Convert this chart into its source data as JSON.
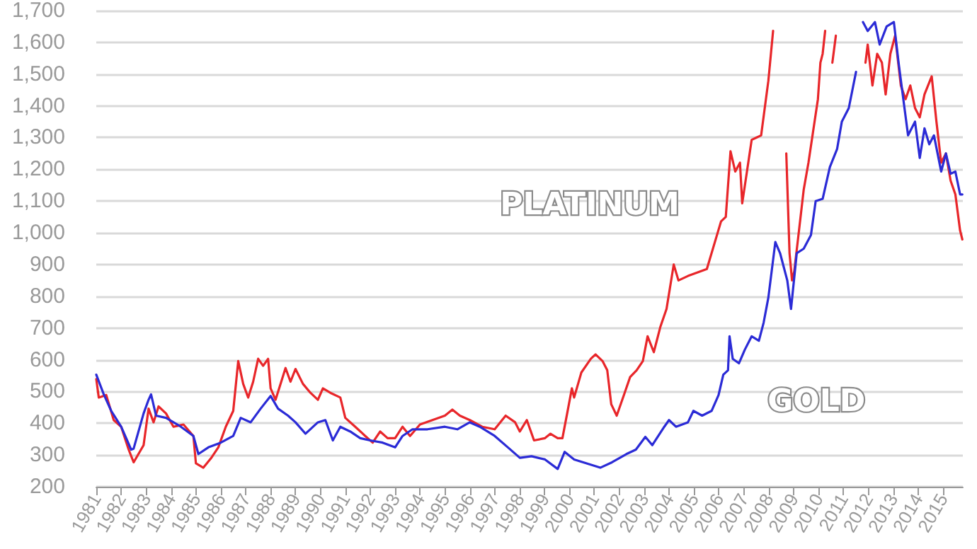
{
  "chart_data": {
    "type": "line",
    "xlim": [
      1981,
      2015.8
    ],
    "ylim": [
      200,
      1700
    ],
    "xticks": [
      1981,
      1982,
      1983,
      1984,
      1985,
      1986,
      1987,
      1988,
      1989,
      1990,
      1991,
      1992,
      1993,
      1994,
      1995,
      1996,
      1997,
      1998,
      1999,
      2000,
      2001,
      2002,
      2003,
      2004,
      2005,
      2006,
      2007,
      2008,
      2009,
      2010,
      2011,
      2012,
      2013,
      2014,
      2015
    ],
    "yticks": [
      200,
      300,
      400,
      500,
      600,
      700,
      800,
      900,
      {
        "value": 1000,
        "label": "1,000"
      },
      {
        "value": 1100,
        "label": "1,100"
      },
      {
        "value": 1200,
        "label": "1,200"
      },
      {
        "value": 1300,
        "label": "1,300"
      },
      {
        "value": 1400,
        "label": "1,400"
      },
      {
        "value": 1500,
        "label": "1,500"
      },
      {
        "value": 1600,
        "label": "1,600"
      },
      {
        "value": 1700,
        "label": "1,700"
      }
    ],
    "grid": "y",
    "legend": false,
    "marker": "none",
    "line_style": "solid",
    "series": [
      {
        "name": "PLATINUM",
        "color": "#e8262a",
        "x": [
          1981.0,
          1981.1,
          1981.4,
          1981.7,
          1982.0,
          1982.3,
          1982.5,
          1982.9,
          1983.1,
          1983.3,
          1983.5,
          1983.8,
          1984.1,
          1984.5,
          1984.9,
          1985.0,
          1985.3,
          1985.6,
          1985.9,
          1986.2,
          1986.5,
          1986.7,
          1986.9,
          1987.1,
          1987.3,
          1987.5,
          1987.7,
          1987.9,
          1988.0,
          1988.2,
          1988.6,
          1988.8,
          1989.0,
          1989.3,
          1989.6,
          1989.9,
          1990.1,
          1990.4,
          1990.8,
          1991.0,
          1991.4,
          1991.8,
          1992.1,
          1992.4,
          1992.7,
          1993.0,
          1993.3,
          1993.6,
          1994.0,
          1994.5,
          1995.0,
          1995.3,
          1995.6,
          1996.0,
          1996.5,
          1997.0,
          1997.44,
          1997.82,
          1998.01,
          1998.29,
          1998.58,
          1999.02,
          1999.24,
          1999.53,
          1999.72,
          1999.91,
          2000.1,
          2000.19,
          2000.48,
          2000.86,
          2001.05,
          2001.33,
          2001.52,
          2001.68,
          2001.9,
          2002.19,
          2002.44,
          2002.7,
          2002.95,
          2003.14,
          2003.39,
          2003.65,
          2003.9,
          2004.19,
          2004.38,
          2004.76,
          2005.52,
          2006.09,
          2006.28,
          2006.47,
          2006.66,
          2006.85,
          2006.94,
          2007.13,
          2007.32,
          2007.51,
          2007.7,
          2007.99,
          2008.18,
          2008.4,
          2008.71,
          2008.84,
          2008.94,
          2009.03,
          2009.22,
          2009.41,
          2009.6,
          2009.79,
          2009.98,
          2010.08,
          2010.17,
          2010.27,
          2010.37,
          2010.56,
          2010.7,
          2010.84,
          2011.89,
          2011.98,
          2012.17,
          2012.36,
          2012.55,
          2012.7,
          2012.89,
          2013.08,
          2013.31,
          2013.5,
          2013.69,
          2013.88,
          2014.07,
          2014.26,
          2014.55,
          2014.74,
          2014.93,
          2015.12,
          2015.31,
          2015.5,
          2015.69,
          2015.78
        ],
        "values": [
          539,
          481,
          489,
          410,
          389,
          317,
          277,
          331,
          446,
          403,
          453,
          431,
          389,
          396,
          360,
          274,
          260,
          289,
          324,
          389,
          439,
          596,
          524,
          481,
          531,
          603,
          581,
          603,
          510,
          474,
          574,
          531,
          571,
          524,
          496,
          474,
          510,
          496,
          481,
          417,
          389,
          360,
          339,
          374,
          353,
          353,
          389,
          360,
          396,
          410,
          424,
          443,
          424,
          410,
          389,
          381,
          424,
          403,
          374,
          410,
          346,
          353,
          367,
          353,
          353,
          431,
          510,
          481,
          560,
          603,
          617,
          596,
          567,
          460,
          424,
          489,
          546,
          567,
          596,
          674,
          624,
          703,
          760,
          900,
          850,
          864,
          886,
          1036,
          1050,
          1257,
          1193,
          1221,
          1093,
          1193,
          1293,
          1300,
          1307,
          1479,
          1636,
          null,
          1250,
          936,
          850,
          879,
          1007,
          1136,
          1221,
          1321,
          1421,
          1536,
          1564,
          1636,
          null,
          1536,
          1621,
          null,
          1536,
          1593,
          1464,
          1564,
          1536,
          1436,
          1564,
          1621,
          1464,
          1421,
          1464,
          1393,
          1364,
          1436,
          1493,
          1350,
          1221,
          1250,
          1164,
          1121,
          1007,
          979
        ]
      },
      {
        "name": "GOLD",
        "color": "#2b2bd6",
        "x": [
          1981.0,
          1981.3,
          1981.6,
          1982.0,
          1982.4,
          1982.5,
          1982.9,
          1983.1,
          1983.2,
          1983.4,
          1983.8,
          1984.4,
          1984.9,
          1985.1,
          1985.5,
          1986.0,
          1986.5,
          1986.8,
          1987.2,
          1987.6,
          1988.0,
          1988.3,
          1988.7,
          1989.0,
          1989.4,
          1989.9,
          1990.2,
          1990.5,
          1990.8,
          1991.2,
          1991.6,
          1992.0,
          1992.5,
          1993.0,
          1993.3,
          1993.7,
          1994.3,
          1995.0,
          1995.5,
          1996.0,
          1996.4,
          1997.0,
          1997.53,
          1998.01,
          1998.48,
          1999.02,
          1999.53,
          1999.81,
          2000.19,
          2000.67,
          2001.24,
          2001.71,
          2002.29,
          2002.67,
          2003.05,
          2003.33,
          2003.81,
          2004.0,
          2004.28,
          2004.76,
          2004.98,
          2005.33,
          2005.71,
          2005.99,
          2006.18,
          2006.37,
          2006.43,
          2006.56,
          2006.81,
          2007.04,
          2007.32,
          2007.61,
          2007.8,
          2007.99,
          2008.27,
          2008.46,
          2008.75,
          2008.9,
          2009.13,
          2009.41,
          2009.7,
          2009.89,
          2010.17,
          2010.46,
          2010.75,
          2010.94,
          2011.22,
          2011.51,
          2011.7,
          2011.79,
          2011.98,
          2012.27,
          2012.46,
          2012.74,
          2013.03,
          2013.22,
          2013.41,
          2013.6,
          2013.88,
          2014.07,
          2014.26,
          2014.45,
          2014.64,
          2014.93,
          2015.12,
          2015.31,
          2015.5,
          2015.69,
          2015.78
        ],
        "values": [
          553,
          491,
          439,
          389,
          317,
          320,
          431,
          474,
          491,
          424,
          417,
          389,
          360,
          303,
          324,
          339,
          360,
          417,
          403,
          446,
          486,
          446,
          424,
          403,
          367,
          403,
          410,
          346,
          389,
          374,
          353,
          346,
          339,
          324,
          360,
          381,
          381,
          389,
          381,
          403,
          389,
          360,
          324,
          291,
          296,
          286,
          256,
          310,
          286,
          274,
          260,
          277,
          303,
          317,
          357,
          331,
          389,
          410,
          389,
          403,
          439,
          424,
          439,
          489,
          553,
          567,
          674,
          603,
          589,
          631,
          674,
          660,
          717,
          796,
          971,
          936,
          850,
          760,
          936,
          950,
          993,
          1100,
          1107,
          1207,
          1264,
          1350,
          1393,
          1507,
          null,
          1664,
          1636,
          1664,
          1593,
          1650,
          1664,
          1536,
          1421,
          1307,
          1350,
          1236,
          1329,
          1279,
          1307,
          1193,
          1250,
          1186,
          1193,
          1121,
          1121
        ]
      }
    ]
  }
}
